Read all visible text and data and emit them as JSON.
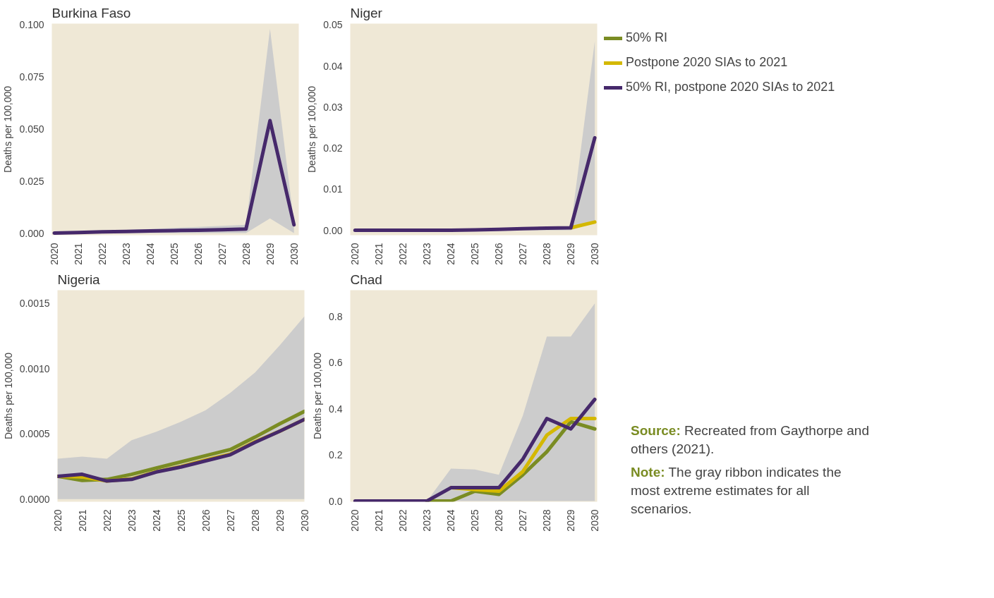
{
  "chart_data": [
    {
      "type": "line",
      "title": "Burkina Faso",
      "ylabel": "Deaths per 100,000",
      "x": [
        2020,
        2021,
        2022,
        2023,
        2024,
        2025,
        2026,
        2027,
        2028,
        2029,
        2030
      ],
      "xlim": [
        2019.9,
        2030.2
      ],
      "xticks": [
        2020,
        2021,
        2022,
        2023,
        2024,
        2025,
        2026,
        2027,
        2028,
        2029,
        2030
      ],
      "ylim": [
        -0.001,
        0.1005
      ],
      "yticks": [
        {
          "value": 0,
          "label": "0.000"
        },
        0.025,
        {
          "value": 0.05,
          "label": "0.050"
        },
        0.075,
        {
          "value": 0.1,
          "label": "0.100"
        }
      ],
      "grid": false,
      "legend": false,
      "marker": "none",
      "line_style": "solid",
      "series": [
        {
          "color": "#46296b",
          "values": [
            0,
            0.0003,
            0.0006,
            0.0008,
            0.001,
            0.0012,
            0.0014,
            0.0016,
            0.002,
            0.054,
            0.004
          ],
          "lower": [
            0,
            0,
            0,
            0,
            0,
            0,
            0,
            0,
            0,
            0.007,
            0
          ],
          "upper": [
            0,
            0.0005,
            0.001,
            0.0015,
            0.002,
            0.0025,
            0.003,
            0.0035,
            0.004,
            0.098,
            0.005
          ]
        }
      ]
    },
    {
      "type": "line",
      "title": "Niger",
      "ylabel": "Deaths per 100,000",
      "x": [
        2020,
        2021,
        2022,
        2023,
        2024,
        2025,
        2026,
        2027,
        2028,
        2029,
        2030
      ],
      "xlim": [
        2019.8,
        2030.1
      ],
      "xticks": [
        2020,
        2021,
        2022,
        2023,
        2024,
        2025,
        2026,
        2027,
        2028,
        2029,
        2030
      ],
      "ylim": [
        -0.0012,
        0.0503
      ],
      "yticks": [
        {
          "value": 0,
          "label": "0.00"
        },
        0.01,
        0.02,
        0.03,
        0.04,
        0.05
      ],
      "grid": false,
      "legend": "top right",
      "marker": "none",
      "line_style": "solid",
      "series": [
        {
          "name": "50% RI",
          "color": "#7a8c23",
          "values": [
            null,
            null,
            null,
            null,
            null,
            null,
            null,
            null,
            null,
            null,
            null
          ]
        },
        {
          "name": "Postpone 2020 SIAs to 2021",
          "color": "#d4b800",
          "values": [
            null,
            null,
            null,
            null,
            null,
            null,
            null,
            null,
            null,
            0.0006,
            0.002
          ]
        },
        {
          "name": "50% RI, postpone 2020 SIAs to 2021",
          "color": "#46296b",
          "values": [
            0,
            0,
            0,
            0,
            0,
            0.0001,
            0.0002,
            0.0004,
            0.0005,
            0.0006,
            0.0225
          ],
          "lower": [
            0,
            0,
            0,
            0,
            0,
            0,
            0,
            0,
            0,
            0,
            0.002
          ],
          "upper": [
            0,
            0,
            0,
            0,
            0,
            0.0002,
            0.0003,
            0.0005,
            0.0006,
            0.0007,
            0.046
          ]
        }
      ]
    },
    {
      "type": "line",
      "title": "Nigeria",
      "ylabel": "Deaths per 100,000",
      "x": [
        2020,
        2021,
        2022,
        2023,
        2024,
        2025,
        2026,
        2027,
        2028,
        2029,
        2030
      ],
      "xlim": [
        2020,
        2030
      ],
      "xticks": [
        2020,
        2021,
        2022,
        2023,
        2024,
        2025,
        2026,
        2027,
        2028,
        2029,
        2030
      ],
      "ylim": [
        -2e-05,
        0.0016
      ],
      "yticks": [
        {
          "value": 0,
          "label": "0.0000"
        },
        0.0005,
        {
          "value": 0.001,
          "label": "0.0010"
        },
        0.0015
      ],
      "grid": false,
      "legend": false,
      "marker": "none",
      "line_style": "solid",
      "series": [
        {
          "color": "#7a8c23",
          "values": [
            0.000175,
            0.000143,
            0.000151,
            0.00019,
            0.000238,
            0.000285,
            0.000333,
            0.00038,
            0.000475,
            0.000577,
            0.000672
          ],
          "lower": [
            0,
            0,
            0,
            0,
            0,
            0,
            0,
            0,
            0,
            0,
            0
          ],
          "upper": [
            0.000309,
            0.000326,
            0.000309,
            0.000451,
            0.000516,
            0.000593,
            0.00068,
            0.000814,
            0.00097,
            0.001177,
            0.0014
          ]
        },
        {
          "color": "#d4b800",
          "values": [
            0.000175,
            0.00017,
            0.000139,
            0.000155,
            0.00021,
            0.00025,
            0.0003,
            0.000345,
            0.00044,
            0.00052,
            0.00061
          ]
        },
        {
          "color": "#46296b",
          "values": [
            0.000175,
            0.00019,
            0.000139,
            0.000151,
            0.000208,
            0.000246,
            0.000293,
            0.00034,
            0.000435,
            0.00052,
            0.00061
          ]
        }
      ]
    },
    {
      "type": "line",
      "title": "Chad",
      "ylabel": "Deaths per 100,000",
      "x": [
        2020,
        2021,
        2022,
        2023,
        2024,
        2025,
        2026,
        2027,
        2028,
        2029,
        2030
      ],
      "xlim": [
        2019.8,
        2030.1
      ],
      "xticks": [
        2020,
        2021,
        2022,
        2023,
        2024,
        2025,
        2026,
        2027,
        2028,
        2029,
        2030
      ],
      "ylim": [
        -0.003,
        0.915
      ],
      "yticks": [
        {
          "value": 0,
          "label": "0.0"
        },
        0.2,
        0.4,
        0.6,
        0.8
      ],
      "grid": false,
      "legend": false,
      "marker": "none",
      "line_style": "solid",
      "annotations": [
        "Source: Recreated from Gaythorpe and others (2021).",
        "Note: The gray ribbon indicates the most extreme estimates for all scenarios."
      ],
      "series": [
        {
          "color": "#7a8c23",
          "values": [
            null,
            null,
            null,
            0,
            0,
            0.043,
            0.029,
            0.114,
            0.214,
            0.344,
            0.313
          ],
          "lower": [
            0,
            0,
            0,
            0,
            0,
            0,
            0,
            0,
            0,
            0,
            0
          ],
          "upper": [
            0,
            0,
            0,
            0,
            0.141,
            0.137,
            0.114,
            0.371,
            0.714,
            0.714,
            0.858
          ]
        },
        {
          "color": "#d4b800",
          "values": [
            null,
            null,
            null,
            null,
            0.058,
            0.05,
            0.043,
            0.128,
            0.286,
            0.358,
            0.358
          ]
        },
        {
          "color": "#46296b",
          "values": [
            0,
            0,
            0,
            0,
            0.058,
            0.058,
            0.058,
            0.182,
            0.358,
            0.313,
            0.441
          ]
        }
      ]
    }
  ]
}
